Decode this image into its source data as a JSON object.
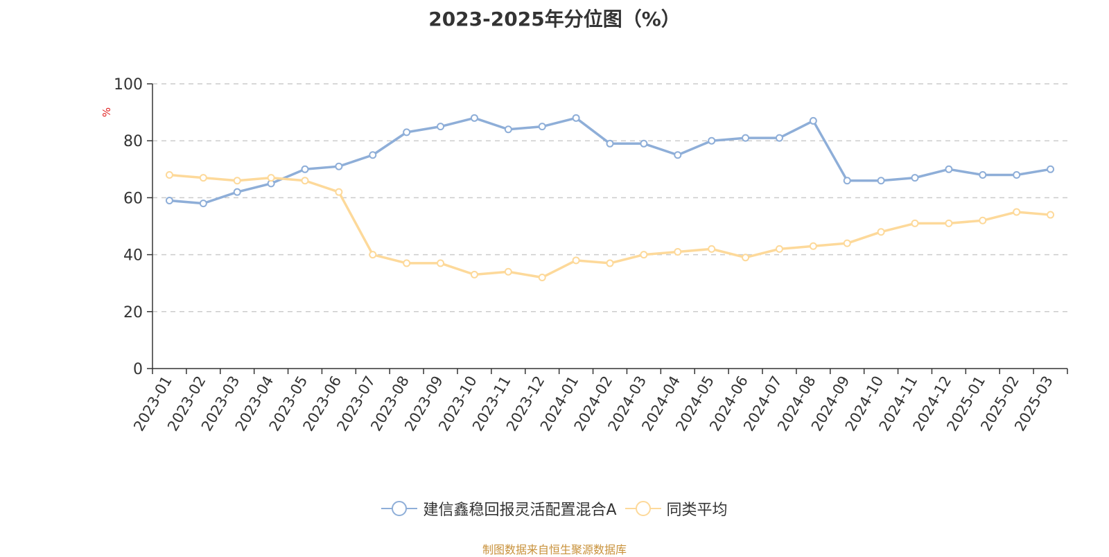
{
  "chart_data": {
    "type": "line",
    "title": "2023-2025年分位图（%）",
    "ylabel": "%",
    "xlabel": "",
    "ylim": [
      0,
      100
    ],
    "yticks": [
      0,
      20,
      40,
      60,
      80,
      100
    ],
    "grid": true,
    "legend_position": "bottom-center",
    "categories": [
      "2023-01",
      "2023-02",
      "2023-03",
      "2023-04",
      "2023-05",
      "2023-06",
      "2023-07",
      "2023-08",
      "2023-09",
      "2023-10",
      "2023-11",
      "2023-12",
      "2024-01",
      "2024-02",
      "2024-03",
      "2024-04",
      "2024-05",
      "2024-06",
      "2024-07",
      "2024-08",
      "2024-09",
      "2024-10",
      "2024-11",
      "2024-12",
      "2025-01",
      "2025-02",
      "2025-03"
    ],
    "series": [
      {
        "name": "建信鑫稳回报灵活配置混合A",
        "color": "#8eaed8",
        "values": [
          59,
          58,
          62,
          65,
          70,
          71,
          75,
          83,
          85,
          88,
          84,
          85,
          88,
          79,
          79,
          75,
          80,
          81,
          81,
          87,
          66,
          66,
          67,
          70,
          68,
          68,
          70
        ]
      },
      {
        "name": "同类平均",
        "color": "#fdd99a",
        "values": [
          68,
          67,
          66,
          67,
          66,
          62,
          40,
          37,
          37,
          33,
          34,
          32,
          38,
          37,
          40,
          41,
          42,
          39,
          42,
          43,
          44,
          48,
          51,
          51,
          52,
          55,
          54
        ]
      }
    ]
  },
  "footer": {
    "source": "制图数据来自恒生聚源数据库"
  }
}
